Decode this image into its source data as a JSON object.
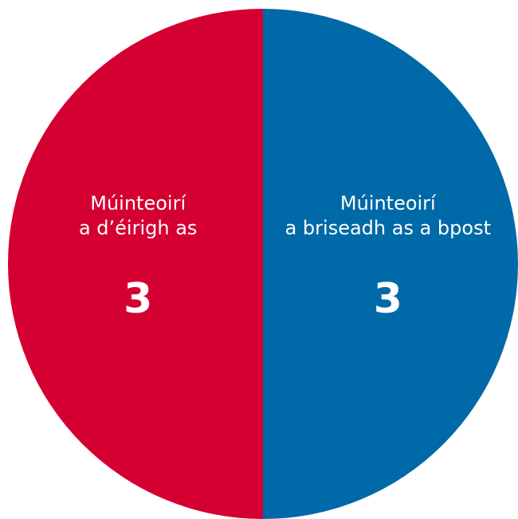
{
  "chart_data": {
    "type": "pie",
    "categories": [
      "Múinteoirí\na d’éirigh as",
      "Múinteoirí\na briseadh as a bpost"
    ],
    "values": [
      3,
      3
    ],
    "colors": [
      "#d50032",
      "#0069a7"
    ]
  }
}
